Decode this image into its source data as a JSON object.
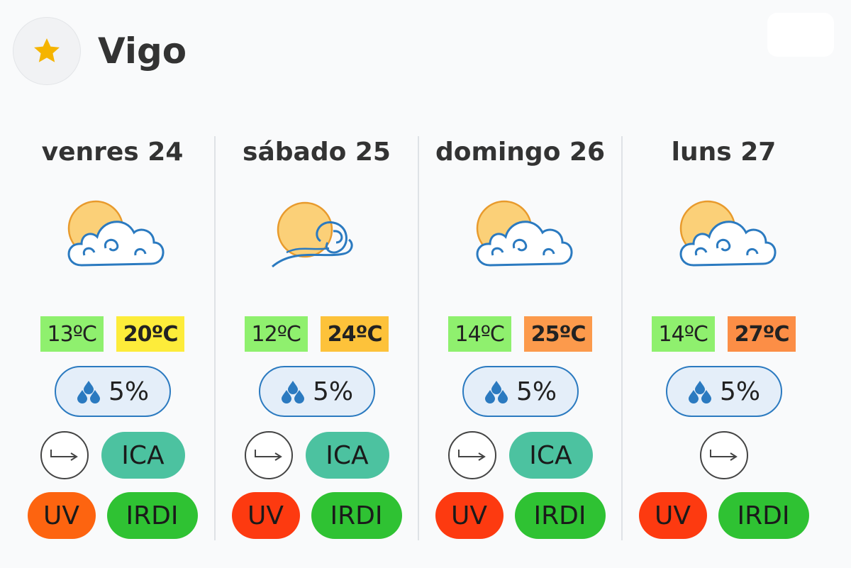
{
  "header": {
    "city": "Vigo",
    "favorite_icon": "star-icon",
    "favorite_color": "#f5b400"
  },
  "days": [
    {
      "title": "venres 24",
      "icon": "sun-behind-cloud-icon",
      "temp_min": "13ºC",
      "temp_min_color": "#8ff06e",
      "temp_max": "20ºC",
      "temp_max_color": "#fdec3a",
      "rain": "5%",
      "wind_icon": "wind-direction-arrow-icon",
      "ica": "ICA",
      "ica_color": "#4cc2a0",
      "uv": "UV",
      "uv_color": "#fd6410",
      "irdi": "IRDI",
      "irdi_color": "#2fc233"
    },
    {
      "title": "sábado 25",
      "icon": "sun-wind-cloud-icon",
      "temp_min": "12ºC",
      "temp_min_color": "#8ff06e",
      "temp_max": "24ºC",
      "temp_max_color": "#fdc23a",
      "rain": "5%",
      "wind_icon": "wind-direction-arrow-icon",
      "ica": "ICA",
      "ica_color": "#4cc2a0",
      "uv": "UV",
      "uv_color": "#fd3a10",
      "irdi": "IRDI",
      "irdi_color": "#2fc233"
    },
    {
      "title": "domingo 26",
      "icon": "sun-behind-cloud-icon",
      "temp_min": "14ºC",
      "temp_min_color": "#8ff06e",
      "temp_max": "25ºC",
      "temp_max_color": "#fc9a4c",
      "rain": "5%",
      "wind_icon": "wind-direction-arrow-icon",
      "ica": "ICA",
      "ica_color": "#4cc2a0",
      "uv": "UV",
      "uv_color": "#fd3a10",
      "irdi": "IRDI",
      "irdi_color": "#2fc233"
    },
    {
      "title": "luns 27",
      "icon": "sun-behind-cloud-icon",
      "temp_min": "14ºC",
      "temp_min_color": "#8ff06e",
      "temp_max": "27ºC",
      "temp_max_color": "#fc8e46",
      "rain": "5%",
      "wind_icon": "wind-direction-arrow-icon",
      "ica": "",
      "ica_color": "",
      "uv": "UV",
      "uv_color": "#fd3a10",
      "irdi": "IRDI",
      "irdi_color": "#2fc233"
    }
  ]
}
